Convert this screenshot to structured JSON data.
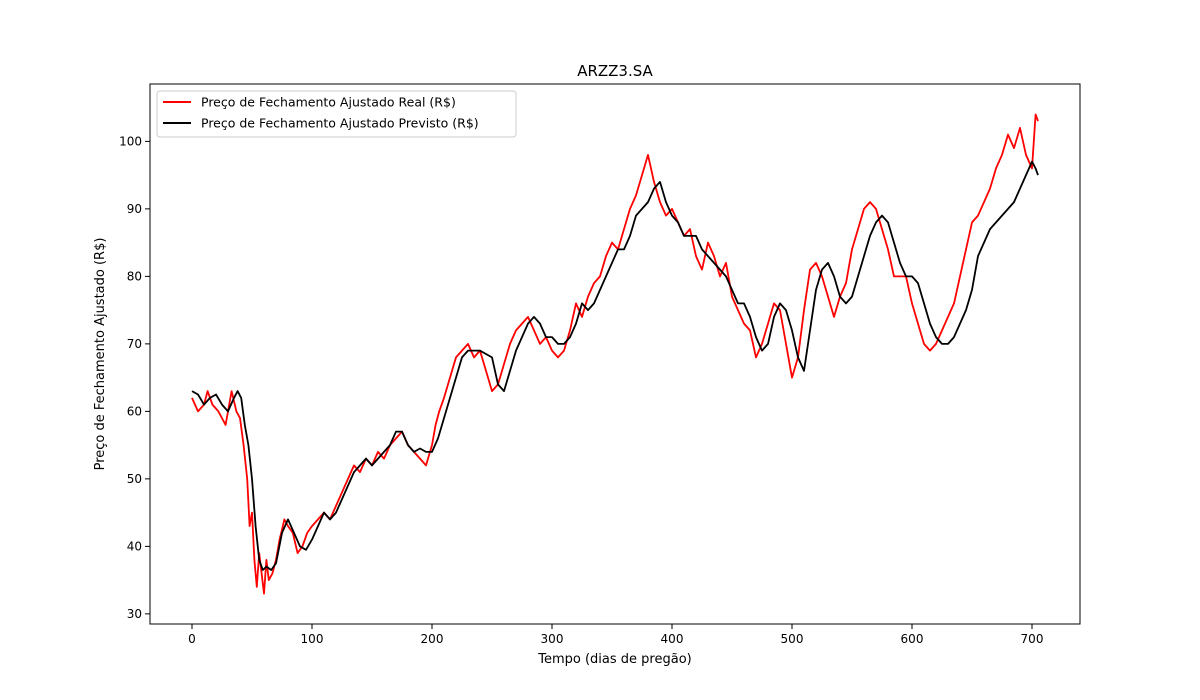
{
  "chart_data": {
    "type": "line",
    "title": "ARZZ3.SA",
    "xlabel": "Tempo (dias de pregão)",
    "ylabel": "Preço de Fechamento Ajustado (R$)",
    "xlim": [
      -35,
      740
    ],
    "ylim": [
      28.5,
      108.5
    ],
    "xticks": [
      0,
      100,
      200,
      300,
      400,
      500,
      600,
      700
    ],
    "yticks": [
      30,
      40,
      50,
      60,
      70,
      80,
      90,
      100
    ],
    "grid": false,
    "legend_position": "top-left",
    "series": [
      {
        "name": "Preço de Fechamento Ajustado Real (R$)",
        "color": "#ff0000",
        "x": [
          0,
          5,
          10,
          13,
          17,
          22,
          28,
          33,
          37,
          40,
          43,
          46,
          48,
          50,
          52,
          54,
          56,
          58,
          60,
          62,
          64,
          67,
          70,
          73,
          77,
          80,
          84,
          88,
          92,
          96,
          100,
          105,
          110,
          115,
          120,
          125,
          130,
          135,
          140,
          145,
          150,
          155,
          160,
          165,
          170,
          175,
          180,
          185,
          190,
          195,
          200,
          203,
          206,
          210,
          215,
          220,
          225,
          230,
          235,
          240,
          245,
          250,
          255,
          260,
          265,
          270,
          275,
          280,
          285,
          290,
          295,
          300,
          305,
          310,
          315,
          320,
          325,
          330,
          335,
          340,
          345,
          350,
          355,
          360,
          365,
          370,
          375,
          380,
          385,
          390,
          395,
          400,
          405,
          410,
          415,
          420,
          425,
          430,
          435,
          440,
          445,
          450,
          455,
          460,
          465,
          470,
          475,
          480,
          485,
          490,
          495,
          500,
          505,
          510,
          515,
          520,
          525,
          530,
          535,
          540,
          545,
          550,
          555,
          560,
          565,
          570,
          575,
          580,
          585,
          590,
          595,
          600,
          605,
          610,
          615,
          620,
          625,
          630,
          635,
          640,
          645,
          650,
          655,
          660,
          665,
          670,
          675,
          680,
          685,
          690,
          695,
          700,
          703,
          705
        ],
        "y": [
          62,
          60,
          61,
          63,
          61,
          60,
          58,
          63,
          60,
          59,
          55,
          50,
          43,
          45,
          38,
          34,
          39,
          36,
          33,
          38,
          35,
          36,
          38,
          41,
          44,
          43,
          42,
          39,
          40,
          42,
          43,
          44,
          45,
          44,
          46,
          48,
          50,
          52,
          51,
          53,
          52,
          54,
          53,
          55,
          56,
          57,
          55,
          54,
          53,
          52,
          55,
          58,
          60,
          62,
          65,
          68,
          69,
          70,
          68,
          69,
          66,
          63,
          64,
          67,
          70,
          72,
          73,
          74,
          72,
          70,
          71,
          69,
          68,
          69,
          72,
          76,
          74,
          77,
          79,
          80,
          83,
          85,
          84,
          87,
          90,
          92,
          95,
          98,
          94,
          91,
          89,
          90,
          88,
          86,
          87,
          83,
          81,
          85,
          83,
          80,
          82,
          77,
          75,
          73,
          72,
          68,
          70,
          73,
          76,
          75,
          70,
          65,
          68,
          75,
          81,
          82,
          80,
          77,
          74,
          77,
          79,
          84,
          87,
          90,
          91,
          90,
          87,
          84,
          80,
          80,
          80,
          76,
          73,
          70,
          69,
          70,
          72,
          74,
          76,
          80,
          84,
          88,
          89,
          91,
          93,
          96,
          98,
          101,
          99,
          102,
          98,
          96,
          104,
          103
        ]
      },
      {
        "name": "Preço de Fechamento Ajustado Previsto (R$)",
        "color": "#000000",
        "x": [
          0,
          5,
          10,
          15,
          20,
          25,
          30,
          35,
          38,
          41,
          44,
          47,
          50,
          53,
          56,
          59,
          62,
          66,
          70,
          75,
          80,
          85,
          90,
          95,
          100,
          105,
          110,
          115,
          120,
          125,
          130,
          135,
          140,
          145,
          150,
          155,
          160,
          165,
          170,
          175,
          180,
          185,
          190,
          195,
          200,
          205,
          210,
          215,
          220,
          225,
          230,
          235,
          240,
          245,
          250,
          255,
          260,
          265,
          270,
          275,
          280,
          285,
          290,
          295,
          300,
          305,
          310,
          315,
          320,
          325,
          330,
          335,
          340,
          345,
          350,
          355,
          360,
          365,
          370,
          375,
          380,
          385,
          390,
          395,
          400,
          405,
          410,
          415,
          420,
          425,
          430,
          435,
          440,
          445,
          450,
          455,
          460,
          465,
          470,
          475,
          480,
          485,
          490,
          495,
          500,
          505,
          510,
          515,
          520,
          525,
          530,
          535,
          540,
          545,
          550,
          555,
          560,
          565,
          570,
          575,
          580,
          585,
          590,
          595,
          600,
          605,
          610,
          615,
          620,
          625,
          630,
          635,
          640,
          645,
          650,
          655,
          660,
          665,
          670,
          675,
          680,
          685,
          690,
          695,
          700,
          703,
          705
        ],
        "y": [
          63,
          62.5,
          61,
          62,
          62.5,
          61,
          60,
          62,
          63,
          62,
          58,
          55,
          50,
          43,
          38,
          36.5,
          37,
          36.5,
          37.5,
          42,
          44,
          42,
          40,
          39.5,
          41,
          43,
          45,
          44,
          45,
          47,
          49,
          51,
          52,
          53,
          52,
          53,
          54,
          55,
          57,
          57,
          55,
          54,
          54.5,
          54,
          54,
          56,
          59,
          62,
          65,
          68,
          69,
          69,
          69,
          68.5,
          68,
          64,
          63,
          66,
          69,
          71,
          73,
          74,
          73,
          71,
          71,
          70,
          70,
          71,
          73,
          76,
          75,
          76,
          78,
          80,
          82,
          84,
          84,
          86,
          89,
          90,
          91,
          93,
          94,
          91,
          89,
          88,
          86,
          86,
          86,
          84,
          83,
          82,
          81,
          80,
          78,
          76,
          76,
          74,
          71,
          69,
          70,
          74,
          76,
          75,
          72,
          68,
          66,
          72,
          78,
          81,
          82,
          80,
          77,
          76,
          77,
          80,
          83,
          86,
          88,
          89,
          88,
          85,
          82,
          80,
          80,
          79,
          76,
          73,
          71,
          70,
          70,
          71,
          73,
          75,
          78,
          83,
          85,
          87,
          88,
          89,
          90,
          91,
          93,
          95,
          97,
          96,
          95
        ]
      }
    ]
  }
}
